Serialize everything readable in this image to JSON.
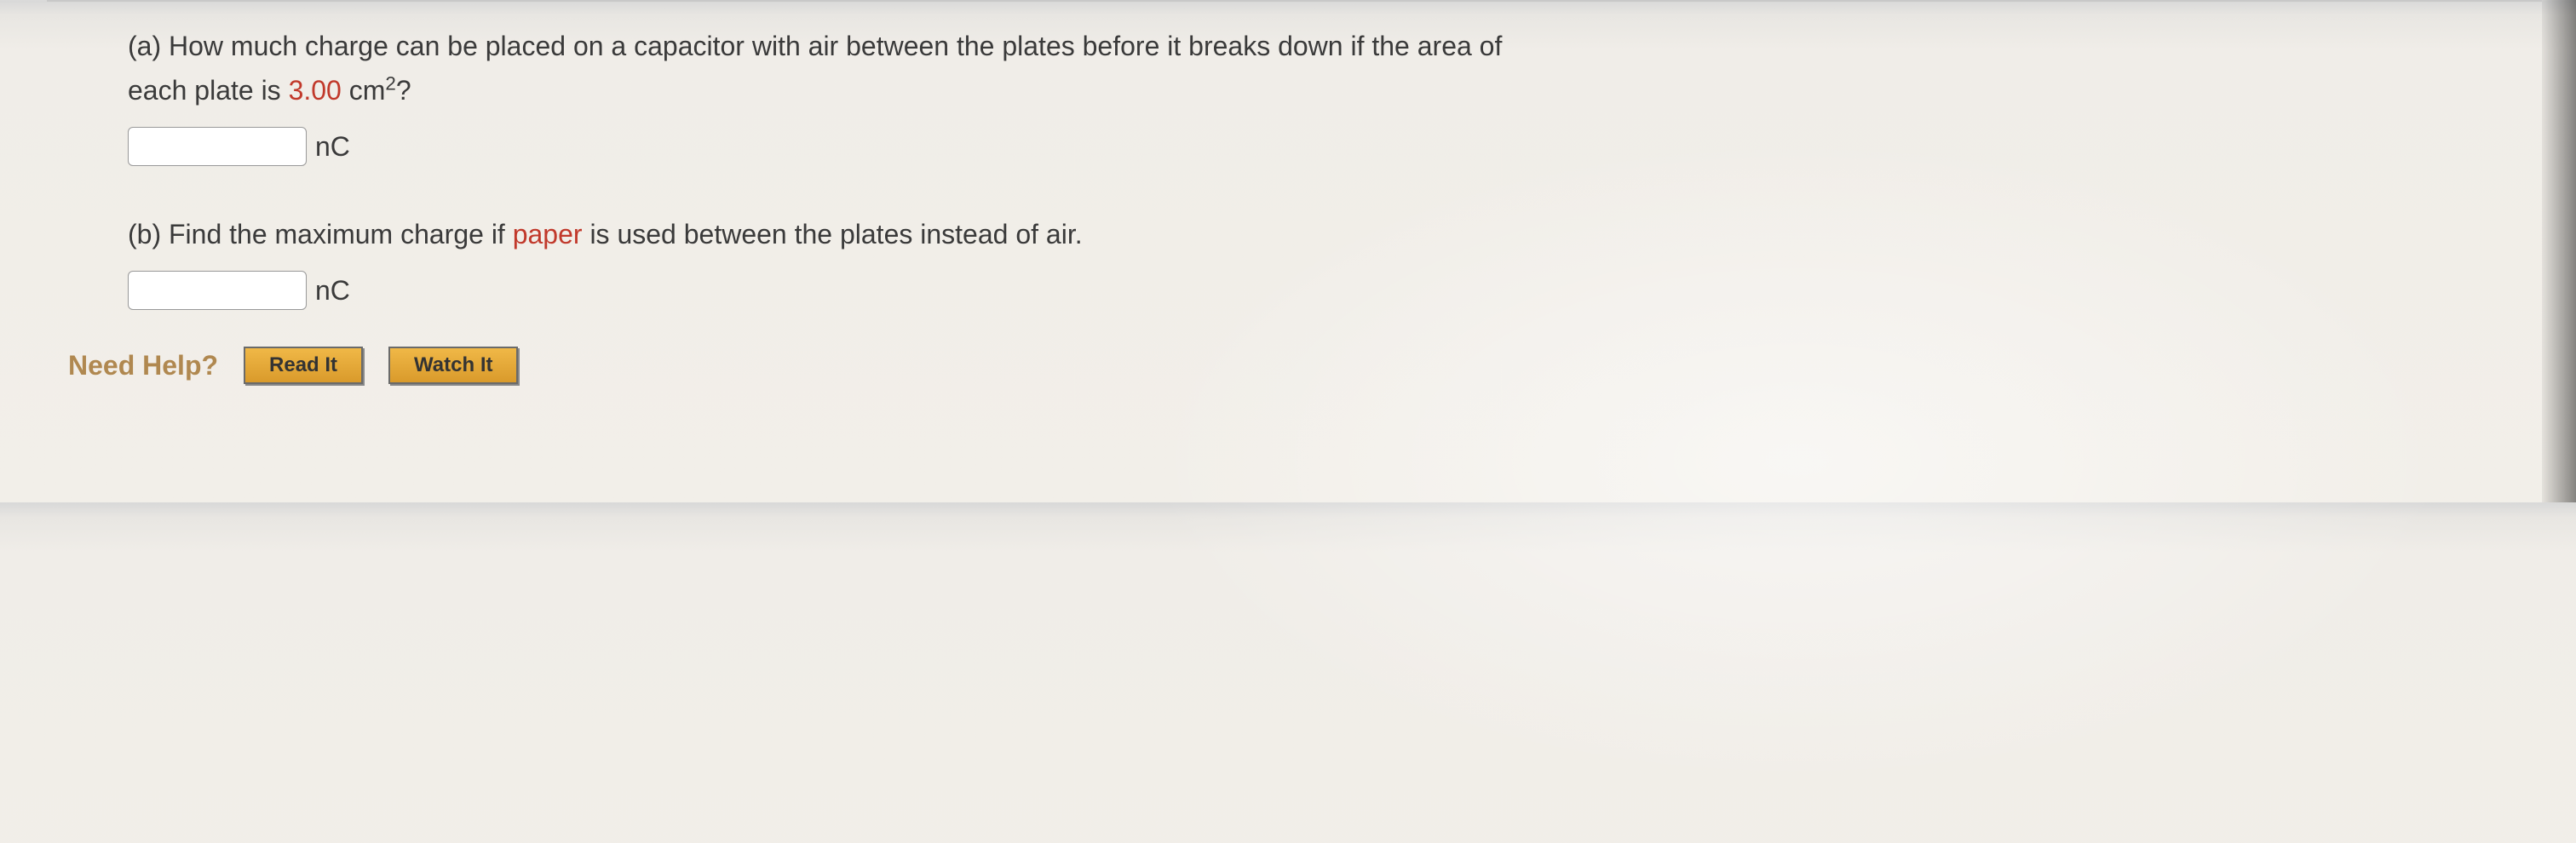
{
  "colors": {
    "highlight": "#c1392b",
    "need_help": "#b08850",
    "text": "#3a3a3a",
    "button_bg_top": "#f0b847",
    "button_bg_bottom": "#d99a2b",
    "button_border": "#6a6a6a"
  },
  "question_a": {
    "line1": "(a) How much charge can be placed on a capacitor with air between the plates before it breaks down if the area of",
    "line2_prefix": "each plate is ",
    "value": "3.00",
    "line2_suffix_base": " cm",
    "line2_exponent": "2",
    "line2_qmark": "?",
    "unit": "nC",
    "input_value": ""
  },
  "question_b": {
    "text_prefix": "(b) Find the maximum charge if ",
    "highlight_word": "paper",
    "text_suffix": " is used between the plates instead of air.",
    "unit": "nC",
    "input_value": ""
  },
  "need_help": {
    "label": "Need Help?",
    "read_button": "Read It",
    "watch_button": "Watch It"
  }
}
